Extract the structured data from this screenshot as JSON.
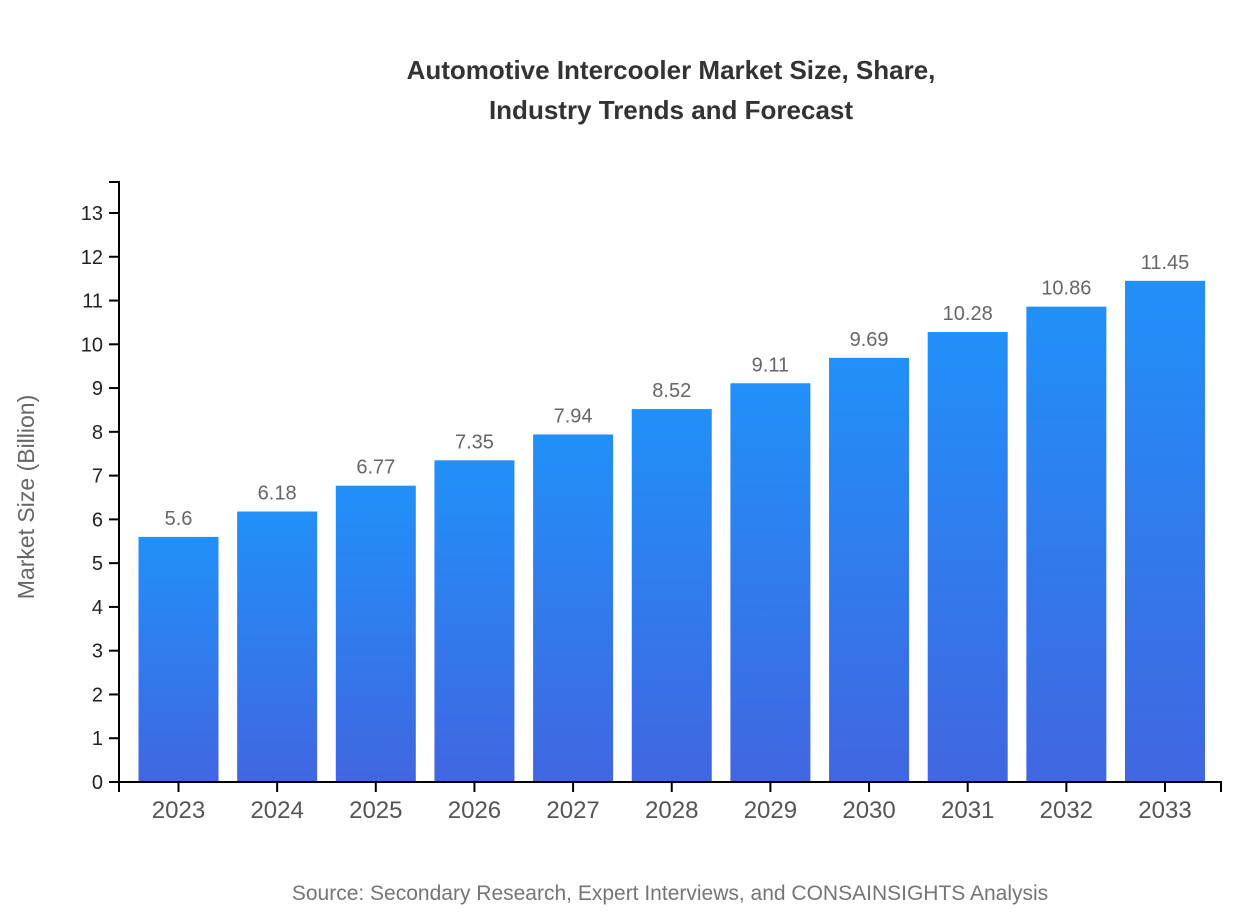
{
  "chart_data": {
    "type": "bar",
    "title_lines": [
      "Automotive Intercooler Market Size, Share,",
      "Industry Trends and Forecast"
    ],
    "categories": [
      "2023",
      "2024",
      "2025",
      "2026",
      "2027",
      "2028",
      "2029",
      "2030",
      "2031",
      "2032",
      "2033"
    ],
    "values": [
      5.6,
      6.18,
      6.77,
      7.35,
      7.94,
      8.52,
      9.11,
      9.69,
      10.28,
      10.86,
      11.45
    ],
    "value_labels": [
      "5.6",
      "6.18",
      "6.77",
      "7.35",
      "7.94",
      "8.52",
      "9.11",
      "9.69",
      "10.28",
      "10.86",
      "11.45"
    ],
    "xlabel": "",
    "ylabel": "Market Size (Billion)",
    "ylim": [
      0,
      13
    ],
    "ytick_step": 1,
    "ytick_labels": [
      "0",
      "1",
      "2",
      "3",
      "4",
      "5",
      "6",
      "7",
      "8",
      "9",
      "10",
      "11",
      "12",
      "13"
    ],
    "grid": false,
    "legend_position": "none",
    "source_note": "Source: Secondary Research, Expert Interviews, and CONSAINSIGHTS Analysis",
    "colors": {
      "bar_gradient_top": "#2190F8",
      "bar_gradient_bottom": "#4166E1",
      "title": "#333333",
      "axis_line": "#000000",
      "ytick_label": "#222222",
      "category_label": "#555555",
      "value_label": "#666666",
      "ylabel": "#666666",
      "source": "#757575"
    }
  }
}
